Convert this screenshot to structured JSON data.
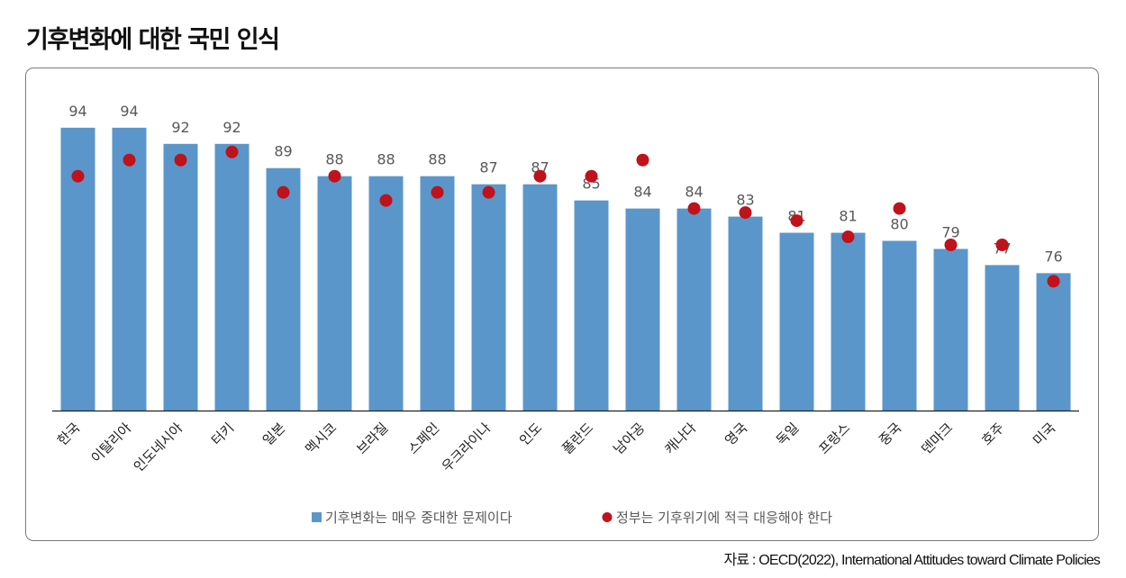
{
  "title": "기후변화에 대한 국민 인식",
  "source": "자료 : OECD(2022), International Attitudes toward Climate Policies",
  "colors": {
    "bar": "#5b96cb",
    "dot": "#c0121b",
    "axis": "#222222"
  },
  "chart_data": {
    "type": "bar",
    "categories": [
      "한국",
      "이탈리아",
      "인도네시아",
      "터키",
      "일본",
      "멕시코",
      "브라질",
      "스페인",
      "우크라이나",
      "인도",
      "폴란드",
      "남아공",
      "캐나다",
      "영국",
      "독일",
      "프랑스",
      "중국",
      "덴마크",
      "호주",
      "미국"
    ],
    "series": [
      {
        "name": "기후변화는 매우 중대한 문제이다",
        "kind": "bar",
        "values": [
          94,
          94,
          92,
          92,
          89,
          88,
          88,
          88,
          87,
          87,
          85,
          84,
          84,
          83,
          81,
          81,
          80,
          79,
          77,
          76
        ]
      },
      {
        "name": "정부는 기후위기에 적극 대응해야 한다",
        "kind": "dot",
        "values": [
          88,
          90,
          90,
          91,
          86,
          88,
          85,
          86,
          86,
          88,
          88,
          90,
          84,
          83.5,
          82.5,
          80.5,
          84,
          79.5,
          79.5,
          75
        ]
      }
    ],
    "ylim": [
      59,
      100
    ],
    "legend_position": "bottom-center",
    "grid": false
  }
}
